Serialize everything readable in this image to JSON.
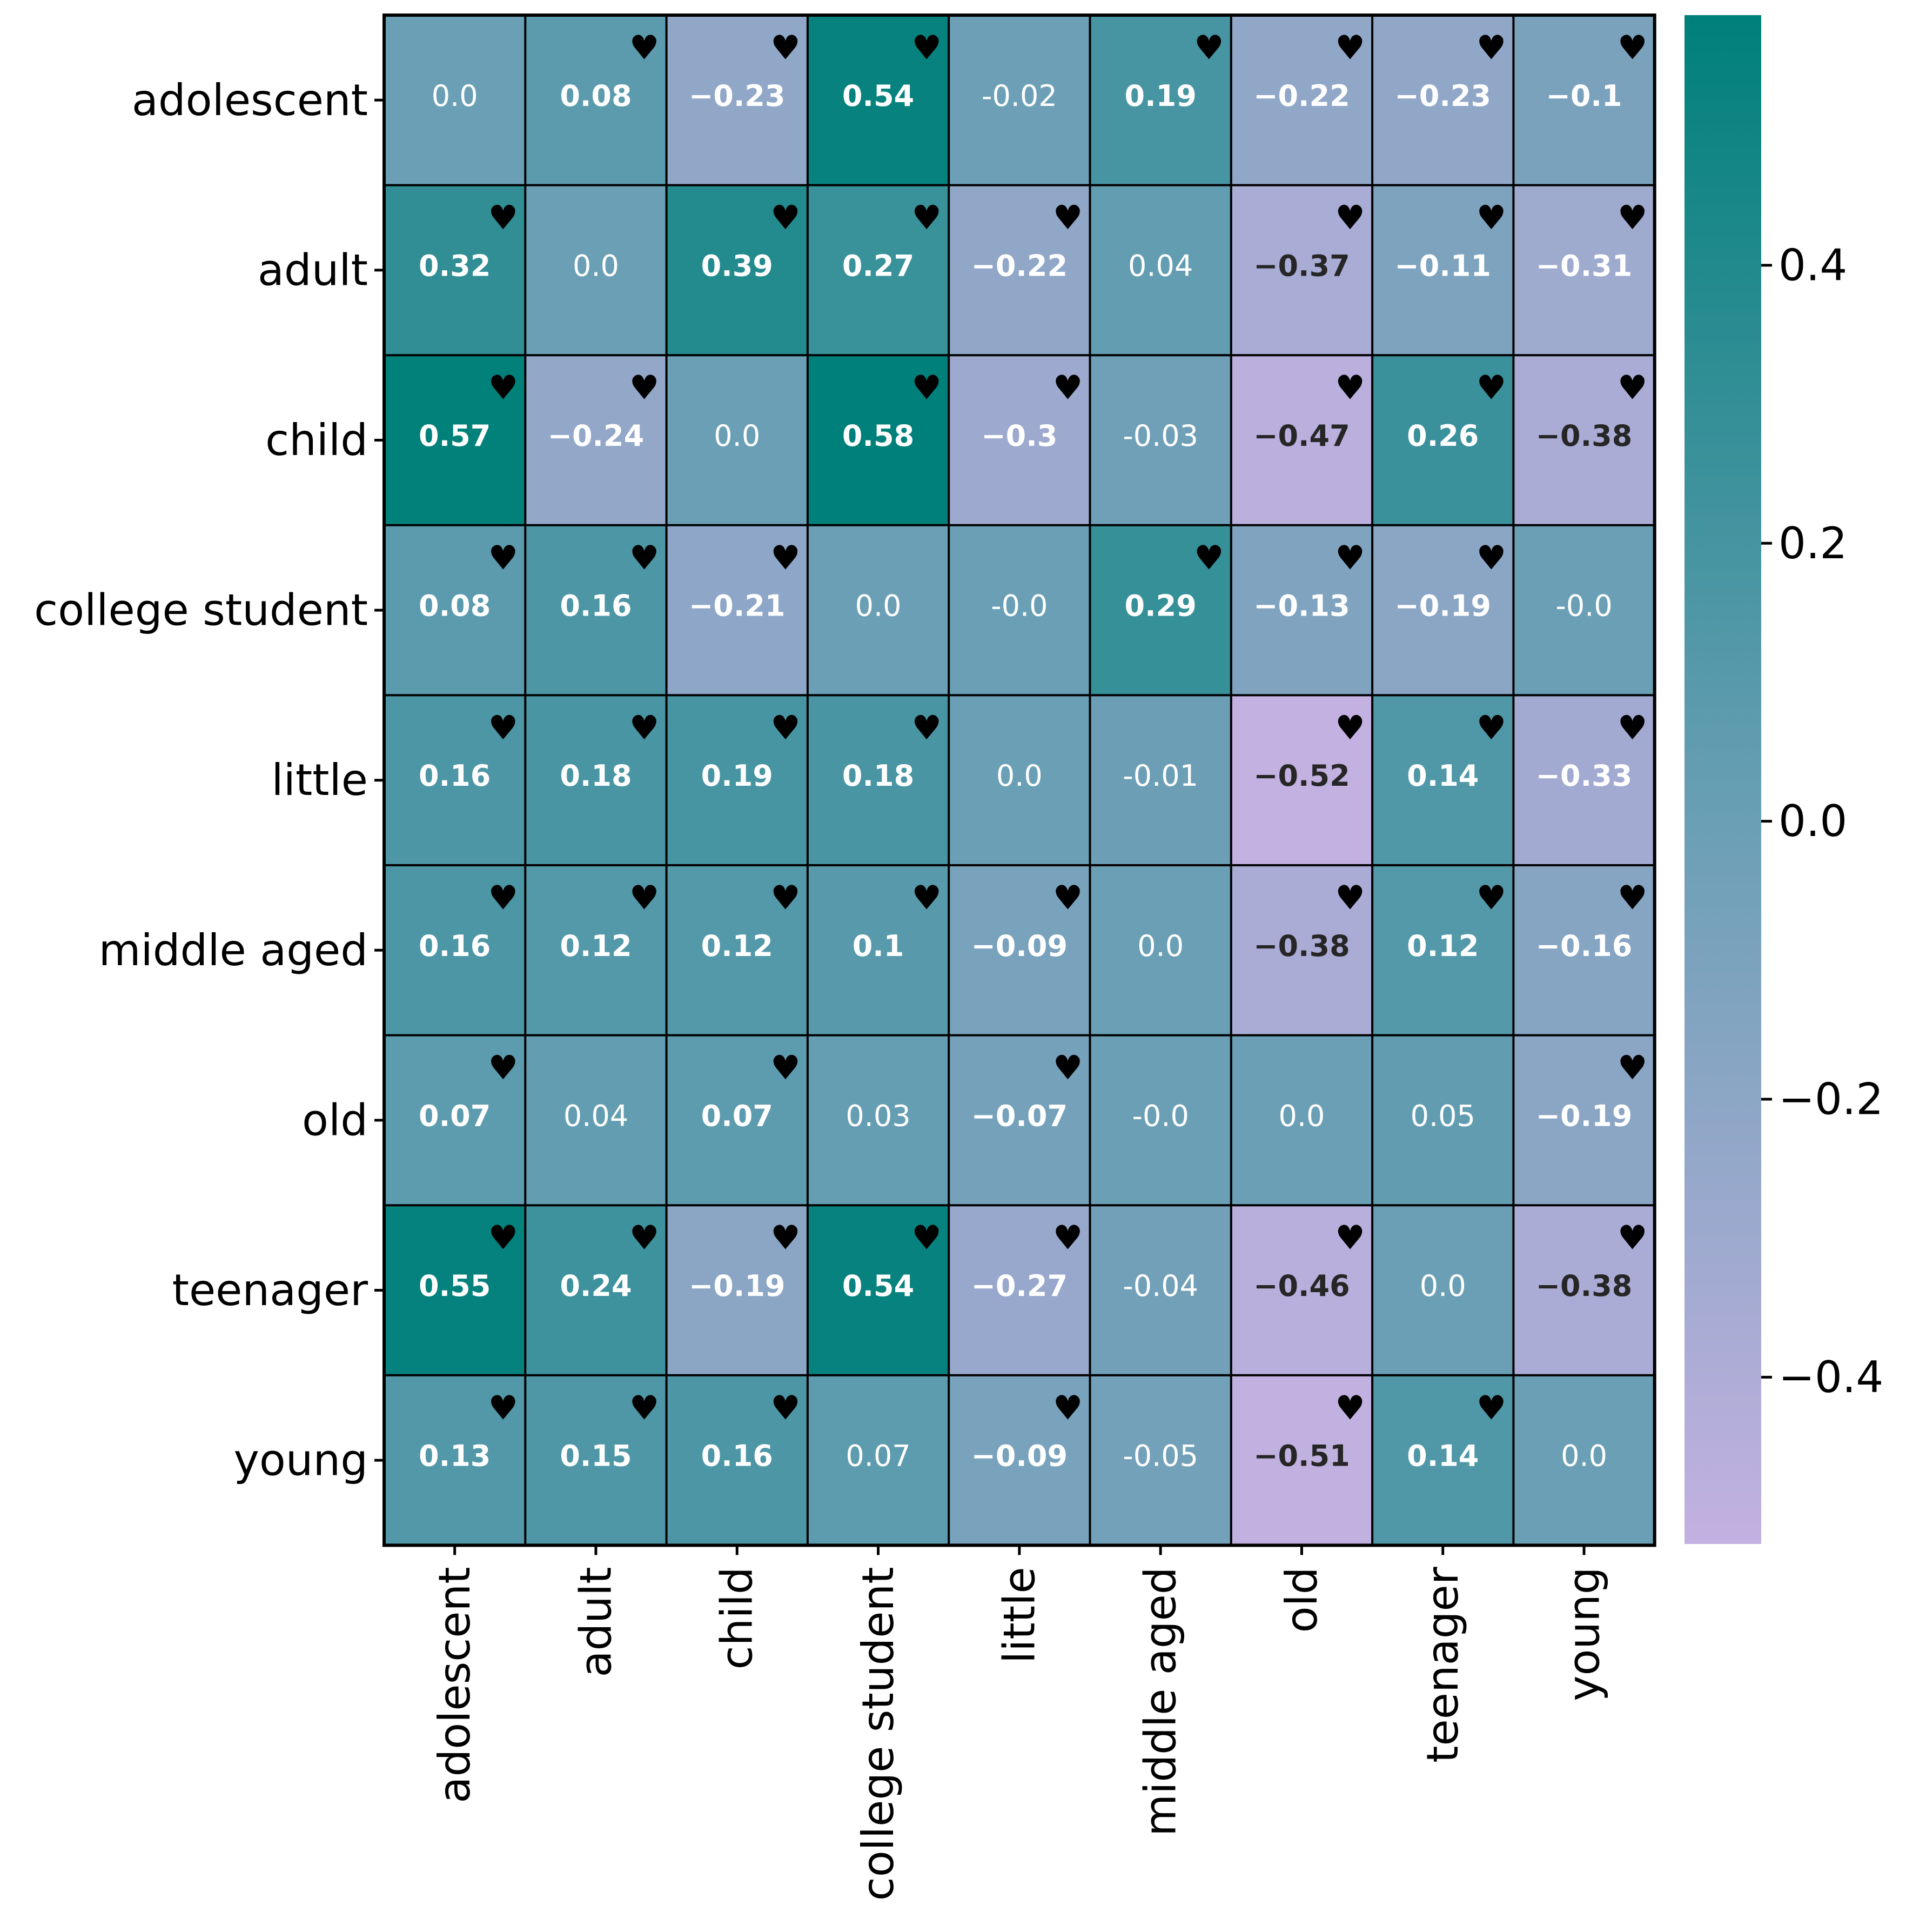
{
  "chart_data": {
    "type": "heatmap",
    "rows": [
      "adolescent",
      "adult",
      "child",
      "college student",
      "little",
      "middle aged",
      "old",
      "teenager",
      "young"
    ],
    "columns": [
      "adolescent",
      "adult",
      "child",
      "college student",
      "little",
      "middle aged",
      "old",
      "teenager",
      "young"
    ],
    "values": [
      [
        0.0,
        0.08,
        -0.23,
        0.54,
        -0.02,
        0.19,
        -0.22,
        -0.23,
        -0.1
      ],
      [
        0.32,
        0.0,
        0.39,
        0.27,
        -0.22,
        0.04,
        -0.37,
        -0.11,
        -0.31
      ],
      [
        0.57,
        -0.24,
        0.0,
        0.58,
        -0.3,
        -0.03,
        -0.47,
        0.26,
        -0.38
      ],
      [
        0.08,
        0.16,
        -0.21,
        0.0,
        -0.0,
        0.29,
        -0.13,
        -0.19,
        -0.0
      ],
      [
        0.16,
        0.18,
        0.19,
        0.18,
        0.0,
        -0.01,
        -0.52,
        0.14,
        -0.33
      ],
      [
        0.16,
        0.12,
        0.12,
        0.1,
        -0.09,
        0.0,
        -0.38,
        0.12,
        -0.16
      ],
      [
        0.07,
        0.04,
        0.07,
        0.03,
        -0.07,
        -0.0,
        0.0,
        0.05,
        -0.19
      ],
      [
        0.55,
        0.24,
        -0.19,
        0.54,
        -0.27,
        -0.04,
        -0.46,
        0.0,
        -0.38
      ],
      [
        0.13,
        0.15,
        0.16,
        0.07,
        -0.09,
        -0.05,
        -0.51,
        0.14,
        0.0
      ]
    ],
    "labels": [
      [
        "0.0",
        "0.08",
        "−0.23",
        "0.54",
        "-0.02",
        "0.19",
        "−0.22",
        "−0.23",
        "−0.1"
      ],
      [
        "0.32",
        "0.0",
        "0.39",
        "0.27",
        "−0.22",
        "0.04",
        "−0.37",
        "−0.11",
        "−0.31"
      ],
      [
        "0.57",
        "−0.24",
        "0.0",
        "0.58",
        "−0.3",
        "-0.03",
        "−0.47",
        "0.26",
        "−0.38"
      ],
      [
        "0.08",
        "0.16",
        "−0.21",
        "0.0",
        "-0.0",
        "0.29",
        "−0.13",
        "−0.19",
        "-0.0"
      ],
      [
        "0.16",
        "0.18",
        "0.19",
        "0.18",
        "0.0",
        "-0.01",
        "−0.52",
        "0.14",
        "−0.33"
      ],
      [
        "0.16",
        "0.12",
        "0.12",
        "0.1",
        "−0.09",
        "0.0",
        "−0.38",
        "0.12",
        "−0.16"
      ],
      [
        "0.07",
        "0.04",
        "0.07",
        "0.03",
        "−0.07",
        "-0.0",
        "0.0",
        "0.05",
        "−0.19"
      ],
      [
        "0.55",
        "0.24",
        "−0.19",
        "0.54",
        "−0.27",
        "-0.04",
        "−0.46",
        "0.0",
        "−0.38"
      ],
      [
        "0.13",
        "0.15",
        "0.16",
        "0.07",
        "−0.09",
        "-0.05",
        "−0.51",
        "0.14",
        "0.0"
      ]
    ],
    "significant": [
      [
        0,
        1,
        1,
        1,
        0,
        1,
        1,
        1,
        1
      ],
      [
        1,
        0,
        1,
        1,
        1,
        0,
        1,
        1,
        1
      ],
      [
        1,
        1,
        0,
        1,
        1,
        0,
        1,
        1,
        1
      ],
      [
        1,
        1,
        1,
        0,
        0,
        1,
        1,
        1,
        0
      ],
      [
        1,
        1,
        1,
        1,
        0,
        0,
        1,
        1,
        1
      ],
      [
        1,
        1,
        1,
        1,
        1,
        0,
        1,
        1,
        1
      ],
      [
        1,
        0,
        1,
        0,
        1,
        0,
        0,
        0,
        1
      ],
      [
        1,
        1,
        1,
        1,
        1,
        0,
        1,
        0,
        1
      ],
      [
        1,
        1,
        1,
        0,
        1,
        0,
        1,
        1,
        0
      ]
    ],
    "marker_symbol": "♥",
    "colorbar": {
      "min": -0.52,
      "max": 0.58,
      "ticks": [
        -0.4,
        -0.2,
        0.0,
        0.2,
        0.4
      ],
      "tick_labels": [
        "−0.4",
        "−0.2",
        "0.0",
        "0.2",
        "0.4"
      ],
      "color_low": "#c3b1e1",
      "color_mid": "#6a9fb5",
      "color_high": "#00807a"
    },
    "title": "",
    "xlabel": "",
    "ylabel": ""
  }
}
